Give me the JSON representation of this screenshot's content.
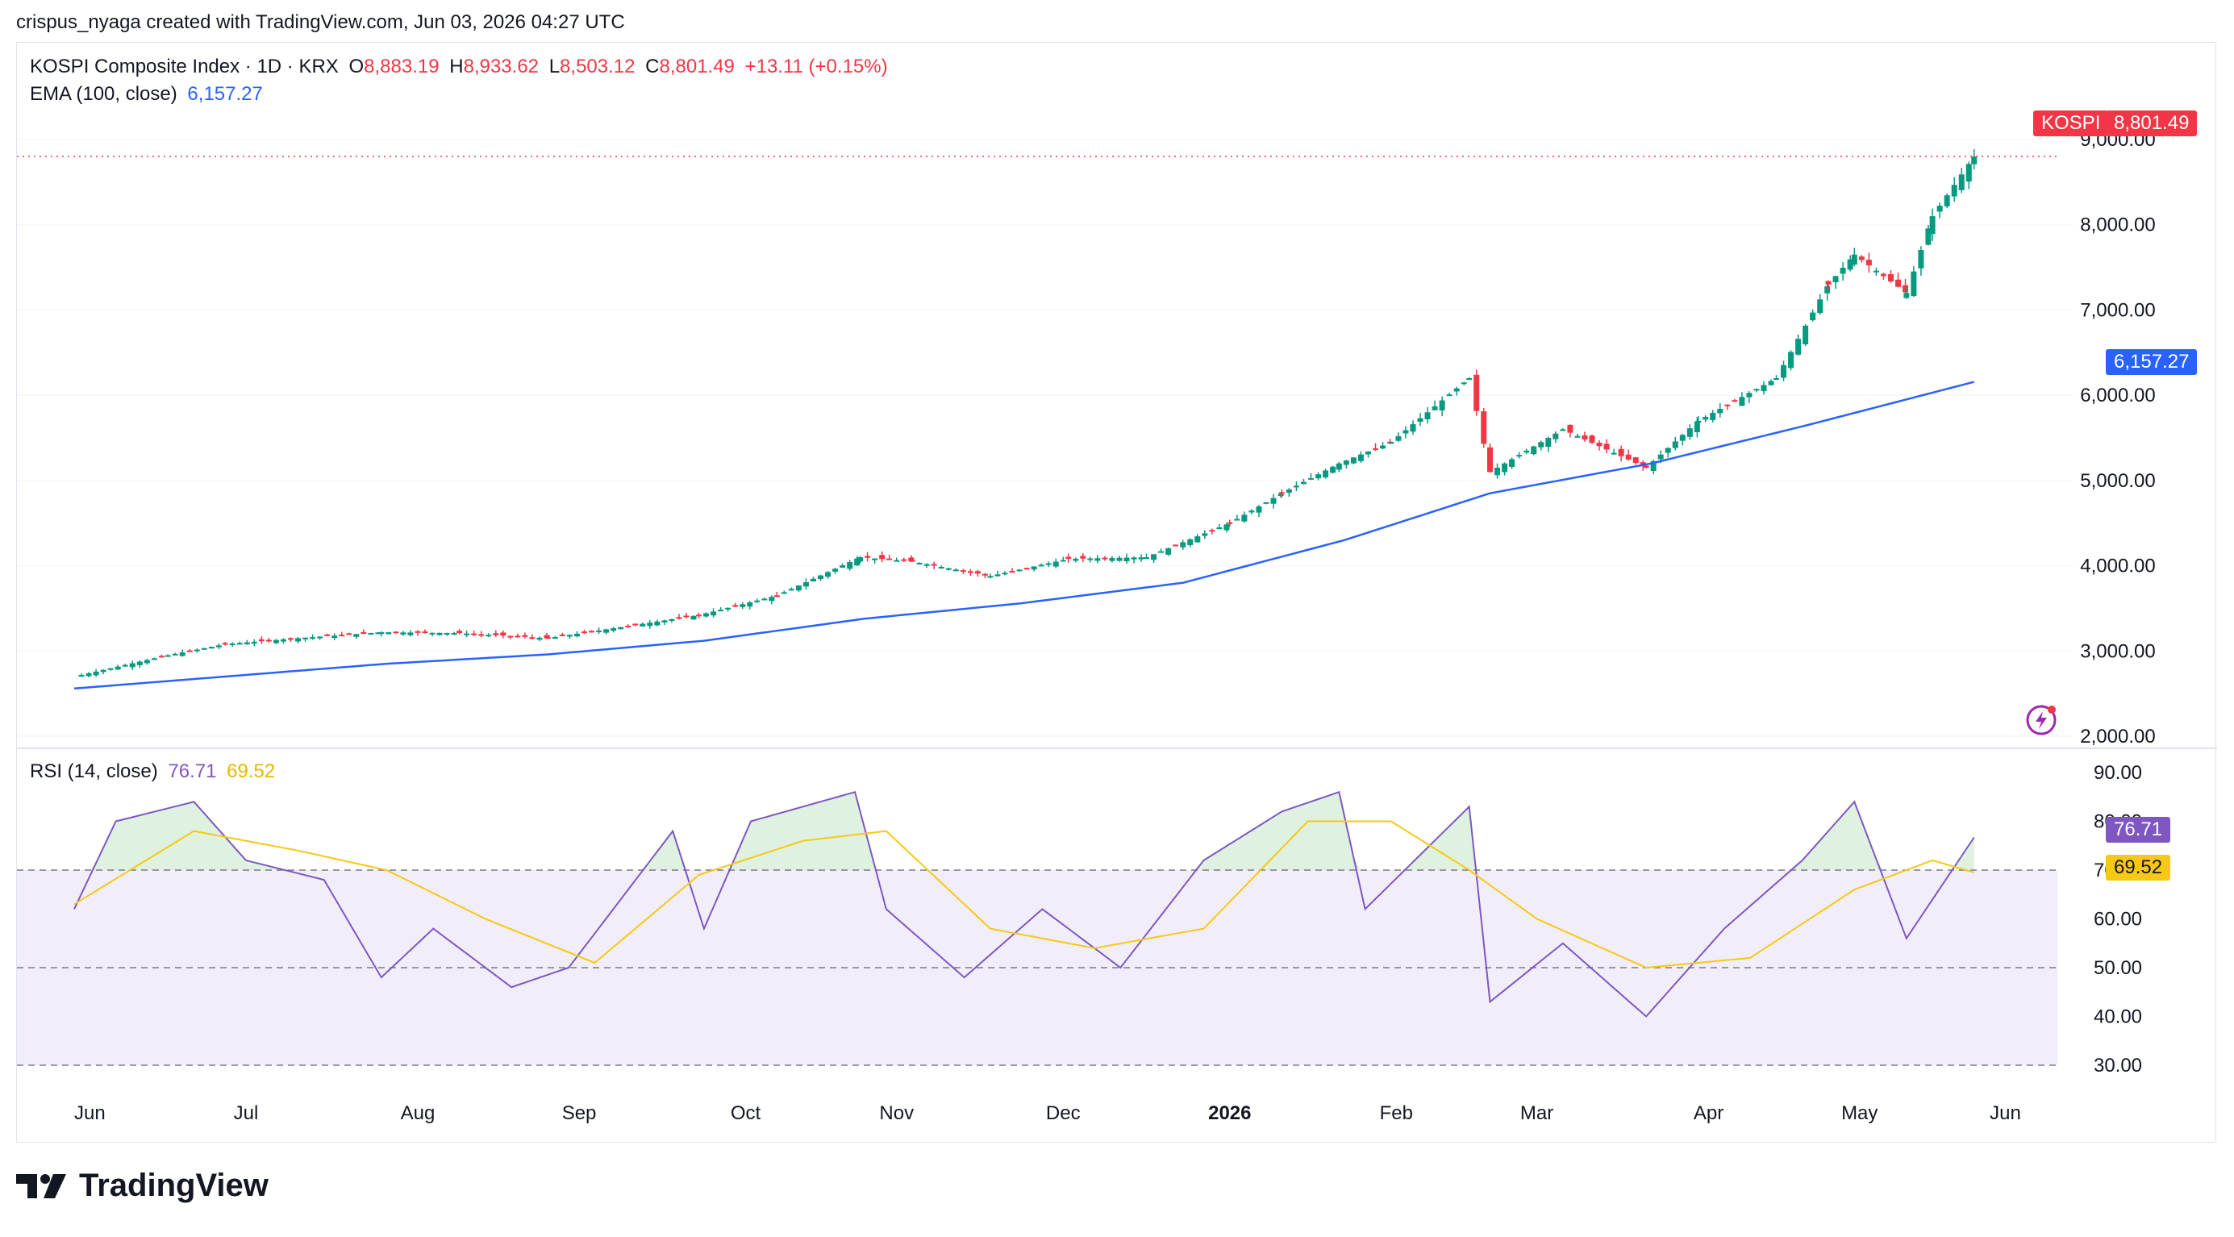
{
  "header": {
    "attribution": "crispus_nyaga created with TradingView.com, Jun 03, 2026 04:27 UTC"
  },
  "legend": {
    "symbol": "KOSPI Composite Index · 1D · KRX",
    "o_label": "O",
    "o_value": "8,883.19",
    "h_label": "H",
    "h_value": "8,933.62",
    "l_label": "L",
    "l_value": "8,503.12",
    "c_label": "C",
    "c_value": "8,801.49",
    "change": "+13.11 (+0.15%)",
    "ema_label": "EMA (100, close)",
    "ema_value": "6,157.27",
    "rsi_label": "RSI (14, close)",
    "rsi_value": "76.71",
    "rsi_ma_value": "69.52"
  },
  "price_tags": {
    "symbol": "KOSPI",
    "last": "8,801.49",
    "ema": "6,157.27",
    "rsi": "76.71",
    "rsi_ma": "69.52"
  },
  "colors": {
    "up": "#089981",
    "down": "#f23645",
    "ema": "#2962ff",
    "rsi": "#7e57c2",
    "rsi_ma": "#f7c815",
    "rsi_band": "#7e57c2"
  },
  "footer": {
    "brand": "TradingView"
  },
  "chart_data": [
    {
      "type": "candlestick",
      "title": "KOSPI Composite Index · 1D · KRX",
      "ylim": [
        2000,
        9000
      ],
      "y_ticks": [
        "9,000.00",
        "8,000.00",
        "7,000.00",
        "6,000.00",
        "5,000.00",
        "4,000.00",
        "3,000.00",
        "2,000.00"
      ],
      "x_ticks": [
        "Jun",
        "Jul",
        "Aug",
        "Sep",
        "Oct",
        "Nov",
        "Dec",
        "2026",
        "Feb",
        "Mar",
        "Apr",
        "May",
        "Jun"
      ],
      "last_close": 8801.49,
      "close_series": [
        [
          "2025-06-02",
          2700
        ],
        [
          "2025-06-20",
          2950
        ],
        [
          "2025-07-01",
          3080
        ],
        [
          "2025-07-15",
          3150
        ],
        [
          "2025-07-31",
          3220
        ],
        [
          "2025-08-15",
          3210
        ],
        [
          "2025-09-01",
          3150
        ],
        [
          "2025-09-15",
          3280
        ],
        [
          "2025-09-30",
          3420
        ],
        [
          "2025-10-15",
          3650
        ],
        [
          "2025-10-31",
          4100
        ],
        [
          "2025-11-10",
          4050
        ],
        [
          "2025-11-25",
          3880
        ],
        [
          "2025-12-10",
          4080
        ],
        [
          "2025-12-25",
          4100
        ],
        [
          "2026-01-10",
          4500
        ],
        [
          "2026-01-20",
          4850
        ],
        [
          "2026-01-31",
          5200
        ],
        [
          "2026-02-10",
          5450
        ],
        [
          "2026-02-25",
          6200
        ],
        [
          "2026-03-01",
          5100
        ],
        [
          "2026-03-15",
          5600
        ],
        [
          "2026-03-31",
          5150
        ],
        [
          "2026-04-10",
          5700
        ],
        [
          "2026-04-25",
          6200
        ],
        [
          "2026-05-05",
          7300
        ],
        [
          "2026-05-10",
          7650
        ],
        [
          "2026-05-20",
          7200
        ],
        [
          "2026-05-25",
          8100
        ],
        [
          "2026-06-02",
          8801
        ]
      ],
      "ema_series": [
        [
          "2025-06-02",
          2560
        ],
        [
          "2025-07-01",
          2700
        ],
        [
          "2025-08-01",
          2850
        ],
        [
          "2025-09-01",
          2960
        ],
        [
          "2025-10-01",
          3120
        ],
        [
          "2025-11-01",
          3380
        ],
        [
          "2025-12-01",
          3560
        ],
        [
          "2026-01-01",
          3800
        ],
        [
          "2026-02-01",
          4300
        ],
        [
          "2026-03-01",
          4850
        ],
        [
          "2026-04-01",
          5200
        ],
        [
          "2026-05-01",
          5650
        ],
        [
          "2026-06-02",
          6157
        ]
      ]
    },
    {
      "type": "line",
      "title": "RSI (14, close)",
      "ylim": [
        30,
        90
      ],
      "y_ticks": [
        "90.00",
        "80.00",
        "70.00",
        "60.00",
        "50.00",
        "40.00",
        "30.00"
      ],
      "bands": [
        70,
        50,
        30
      ],
      "series": [
        {
          "name": "RSI",
          "values": [
            [
              "2025-06-02",
              62
            ],
            [
              "2025-06-10",
              80
            ],
            [
              "2025-06-25",
              84
            ],
            [
              "2025-07-05",
              72
            ],
            [
              "2025-07-20",
              68
            ],
            [
              "2025-07-31",
              48
            ],
            [
              "2025-08-10",
              58
            ],
            [
              "2025-08-25",
              46
            ],
            [
              "2025-09-05",
              50
            ],
            [
              "2025-09-25",
              78
            ],
            [
              "2025-10-01",
              58
            ],
            [
              "2025-10-10",
              80
            ],
            [
              "2025-10-30",
              86
            ],
            [
              "2025-11-05",
              62
            ],
            [
              "2025-11-20",
              48
            ],
            [
              "2025-12-05",
              62
            ],
            [
              "2025-12-20",
              50
            ],
            [
              "2026-01-05",
              72
            ],
            [
              "2026-01-20",
              82
            ],
            [
              "2026-01-31",
              86
            ],
            [
              "2026-02-05",
              62
            ],
            [
              "2026-02-25",
              83
            ],
            [
              "2026-03-01",
              43
            ],
            [
              "2026-03-15",
              55
            ],
            [
              "2026-03-31",
              40
            ],
            [
              "2026-04-15",
              58
            ],
            [
              "2026-04-30",
              72
            ],
            [
              "2026-05-10",
              84
            ],
            [
              "2026-05-20",
              56
            ],
            [
              "2026-06-02",
              76.71
            ]
          ]
        },
        {
          "name": "RSI-based MA",
          "values": [
            [
              "2025-06-02",
              63
            ],
            [
              "2025-06-25",
              78
            ],
            [
              "2025-07-15",
              74
            ],
            [
              "2025-08-01",
              70
            ],
            [
              "2025-08-20",
              60
            ],
            [
              "2025-09-10",
              51
            ],
            [
              "2025-09-30",
              69
            ],
            [
              "2025-10-20",
              76
            ],
            [
              "2025-11-05",
              78
            ],
            [
              "2025-11-25",
              58
            ],
            [
              "2025-12-15",
              54
            ],
            [
              "2026-01-05",
              58
            ],
            [
              "2026-01-25",
              80
            ],
            [
              "2026-02-10",
              80
            ],
            [
              "2026-02-25",
              70
            ],
            [
              "2026-03-10",
              60
            ],
            [
              "2026-03-31",
              50
            ],
            [
              "2026-04-20",
              52
            ],
            [
              "2026-05-10",
              66
            ],
            [
              "2026-05-25",
              72
            ],
            [
              "2026-06-02",
              69.52
            ]
          ]
        }
      ]
    }
  ]
}
